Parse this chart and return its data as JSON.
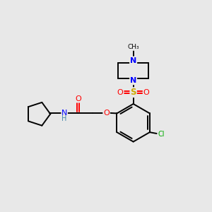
{
  "background_color": "#e8e8e8",
  "atom_colors": {
    "N": "#0000FF",
    "O": "#FF0000",
    "S": "#CCAA00",
    "Cl": "#00AA00",
    "C": "#000000",
    "H": "#4488AA"
  },
  "bond_color": "#000000",
  "figsize": [
    3.0,
    3.0
  ],
  "dpi": 100
}
